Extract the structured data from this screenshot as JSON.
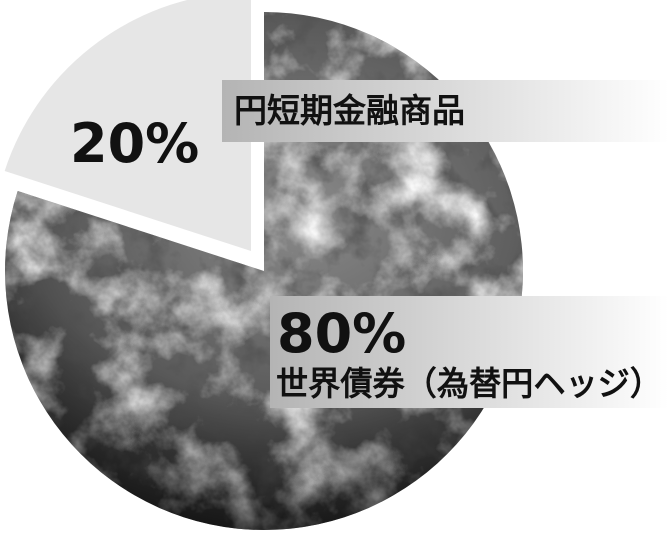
{
  "chart_data": {
    "type": "pie",
    "title": "",
    "slices": [
      {
        "label": "世界債券（為替円ヘッジ）",
        "value": 80,
        "value_text": "80%",
        "style": "globe-photo",
        "exploded": false
      },
      {
        "label": "円短期金融商品",
        "value": 20,
        "value_text": "20%",
        "style": "light-gray",
        "exploded": true
      }
    ],
    "colors": {
      "light_slice": "#e6e6e6",
      "label_band_start": "#b4b4b4",
      "label_band_end": "#ffffff",
      "text": "#111111"
    }
  }
}
